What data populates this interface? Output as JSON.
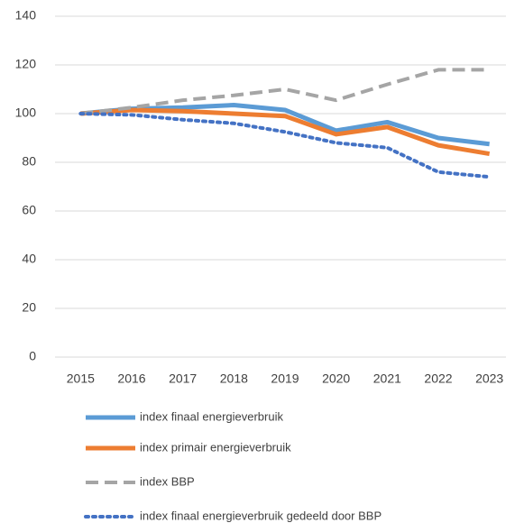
{
  "chart_data": {
    "type": "line",
    "categories": [
      "2015",
      "2016",
      "2017",
      "2018",
      "2019",
      "2020",
      "2021",
      "2022",
      "2023"
    ],
    "ylim": [
      0,
      140
    ],
    "yticks": [
      0,
      20,
      40,
      60,
      80,
      100,
      120,
      140
    ],
    "grid": true,
    "legend": "bottom",
    "series": [
      {
        "name": "index finaal energieverbruik",
        "color": "#5b9bd5",
        "style": "solid",
        "values": [
          100,
          102,
          102.5,
          103.5,
          101.5,
          93,
          96.5,
          90,
          87.5
        ]
      },
      {
        "name": "index primair energieverbruik",
        "color": "#ed7d31",
        "style": "solid",
        "values": [
          100,
          101.5,
          101,
          100,
          99,
          91.5,
          94.5,
          87,
          83.5
        ]
      },
      {
        "name": "index BBP",
        "color": "#a5a5a5",
        "style": "dashed",
        "values": [
          100,
          102.5,
          105.5,
          107.5,
          110,
          105.5,
          112,
          118,
          118
        ]
      },
      {
        "name": "index finaal energieverbruik gedeeld door BBP",
        "color": "#4472c4",
        "style": "dotted",
        "values": [
          100,
          99.5,
          97.5,
          96,
          92.5,
          88,
          86,
          76,
          74
        ]
      }
    ]
  }
}
